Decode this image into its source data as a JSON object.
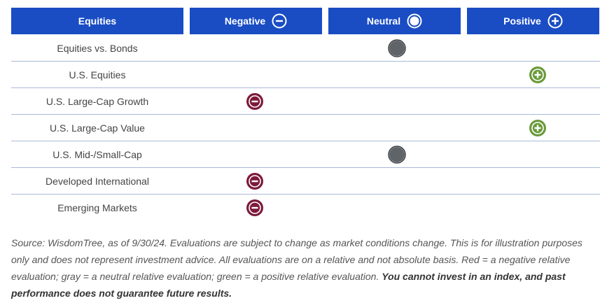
{
  "header": {
    "col0": "Equities",
    "col1": "Negative",
    "col2": "Neutral",
    "col3": "Positive"
  },
  "colors": {
    "header_bg": "#1a4dc4",
    "negative": "#7d1a3a",
    "neutral": "#5f6468",
    "positive": "#6a9a3a"
  },
  "rows": [
    {
      "label": "Equities vs. Bonds",
      "evaluation": "neutral"
    },
    {
      "label": "U.S. Equities",
      "evaluation": "positive"
    },
    {
      "label": "U.S. Large-Cap Growth",
      "evaluation": "negative"
    },
    {
      "label": "U.S. Large-Cap Value",
      "evaluation": "positive"
    },
    {
      "label": "U.S. Mid-/Small-Cap",
      "evaluation": "neutral"
    },
    {
      "label": "Developed International",
      "evaluation": "negative"
    },
    {
      "label": "Emerging Markets",
      "evaluation": "negative"
    }
  ],
  "footnote": {
    "text": "Source: WisdomTree, as of 9/30/24. Evaluations are subject to change as market conditions change. This is for illustration purposes only and does not represent investment advice. All evaluations are on a relative and not absolute basis. Red = a negative relative evaluation; gray = a neutral relative evaluation; green = a positive relative evaluation. ",
    "bold": "You cannot invest in an index, and past performance does not guarantee future results."
  }
}
